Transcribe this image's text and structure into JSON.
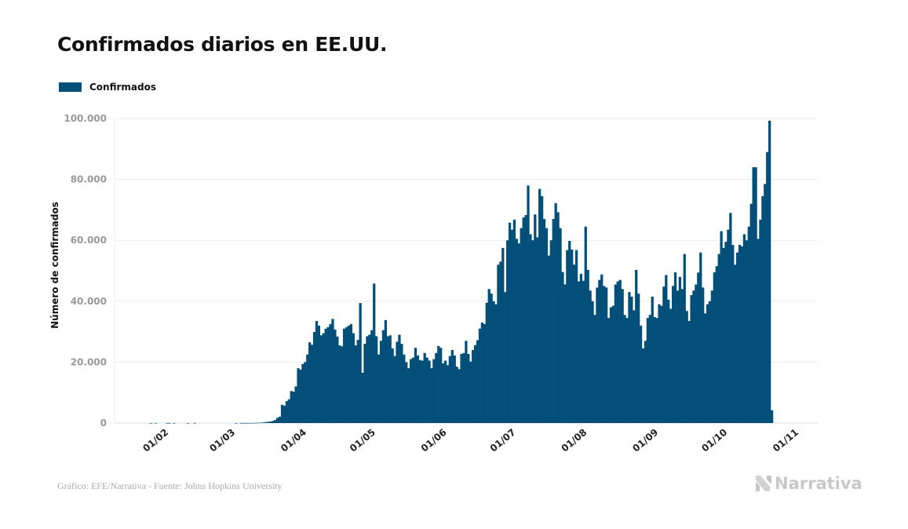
{
  "header": {
    "title": "Confirmados diarios en EE.UU."
  },
  "footer": {
    "source": "Gráfico: EFE/Narrativa - Fuente: Johns Hopkins University",
    "brand": "Narrativa",
    "brand_icon": "narrativa-logo-icon"
  },
  "colors": {
    "bar": "#02507a",
    "grid": "#ececec",
    "axis": "#d8dde2"
  },
  "chart_data": {
    "type": "bar",
    "title": "Confirmados diarios en EE.UU.",
    "xlabel": "",
    "ylabel": "Número de confirmados",
    "legend": [
      {
        "name": "Confirmados",
        "position": "top-left"
      }
    ],
    "ylim": [
      0,
      100000
    ],
    "yticks": [
      0,
      20000,
      40000,
      60000,
      80000,
      100000
    ],
    "ytick_labels": [
      "0",
      "20.000",
      "40.000",
      "60.000",
      "80.000",
      "100.000"
    ],
    "grid": true,
    "x_start": "2020-01-22",
    "xticks": [
      {
        "label": "01/02",
        "day_index": 10
      },
      {
        "label": "01/03",
        "day_index": 39
      },
      {
        "label": "01/04",
        "day_index": 70
      },
      {
        "label": "01/05",
        "day_index": 100
      },
      {
        "label": "01/06",
        "day_index": 131
      },
      {
        "label": "01/07",
        "day_index": 161
      },
      {
        "label": "01/08",
        "day_index": 192
      },
      {
        "label": "01/09",
        "day_index": 223
      },
      {
        "label": "01/10",
        "day_index": 253
      },
      {
        "label": "01/11",
        "day_index": 284
      }
    ],
    "series": [
      {
        "name": "Confirmados",
        "values": [
          0,
          0,
          1,
          0,
          3,
          0,
          0,
          0,
          0,
          1,
          1,
          0,
          1,
          0,
          0,
          0,
          0,
          0,
          1,
          0,
          0,
          1,
          0,
          0,
          0,
          0,
          0,
          0,
          0,
          0,
          0,
          0,
          0,
          0,
          0,
          0,
          0,
          0,
          0,
          1,
          0,
          3,
          4,
          5,
          11,
          21,
          30,
          50,
          70,
          100,
          120,
          220,
          300,
          420,
          500,
          700,
          1000,
          1700,
          2100,
          6000,
          5700,
          7200,
          7800,
          10500,
          10300,
          12000,
          18000,
          17500,
          19400,
          20000,
          22500,
          26500,
          25700,
          29900,
          33500,
          32000,
          28800,
          29500,
          31000,
          31500,
          32500,
          34200,
          30700,
          28400,
          25500,
          25200,
          31000,
          31500,
          32000,
          32500,
          29500,
          25500,
          27300,
          39400,
          16500,
          26000,
          28500,
          29000,
          30500,
          45800,
          28500,
          22500,
          27000,
          30500,
          33800,
          28500,
          28800,
          24500,
          22000,
          26700,
          29000,
          26000,
          22500,
          20000,
          18000,
          21000,
          21500,
          24700,
          22200,
          20700,
          20500,
          23000,
          21500,
          20500,
          18000,
          21000,
          23000,
          25300,
          24700,
          19600,
          20500,
          19000,
          22000,
          24000,
          22200,
          18500,
          17700,
          22700,
          23000,
          27000,
          22700,
          20200,
          24000,
          25600,
          27200,
          31000,
          33000,
          32500,
          39500,
          44000,
          42500,
          40000,
          39000,
          52000,
          53000,
          57500,
          43000,
          60000,
          65800,
          63500,
          66800,
          60500,
          59000,
          64000,
          67500,
          68300,
          78000,
          62000,
          60000,
          68500,
          61000,
          76900,
          74500,
          67000,
          64000,
          55000,
          60000,
          67000,
          72200,
          69200,
          64000,
          49600,
          45500,
          56800,
          59800,
          57000,
          52000,
          56800,
          46500,
          49000,
          46700,
          64500,
          50300,
          43500,
          40000,
          35500,
          44500,
          47000,
          48800,
          45000,
          44500,
          34500,
          38000,
          38500,
          45500,
          46500,
          47000,
          44000,
          35500,
          34500,
          43000,
          41500,
          37000,
          50300,
          42500,
          32000,
          24500,
          27000,
          34500,
          35500,
          41500,
          34800,
          34500,
          39000,
          38500,
          44800,
          48600,
          40500,
          37500,
          45000,
          49500,
          43500,
          48000,
          44000,
          55500,
          36800,
          33500,
          42000,
          43500,
          45500,
          49400,
          56000,
          44500,
          36000,
          39000,
          40000,
          43500,
          49500,
          51500,
          55500,
          63000,
          57500,
          59500,
          63500,
          69000,
          58500,
          52000,
          56000,
          58500,
          58000,
          62000,
          60000,
          64500,
          72000,
          84000,
          84000,
          60500,
          66800,
          74500,
          78500,
          89000,
          99300,
          4200
        ]
      }
    ]
  }
}
